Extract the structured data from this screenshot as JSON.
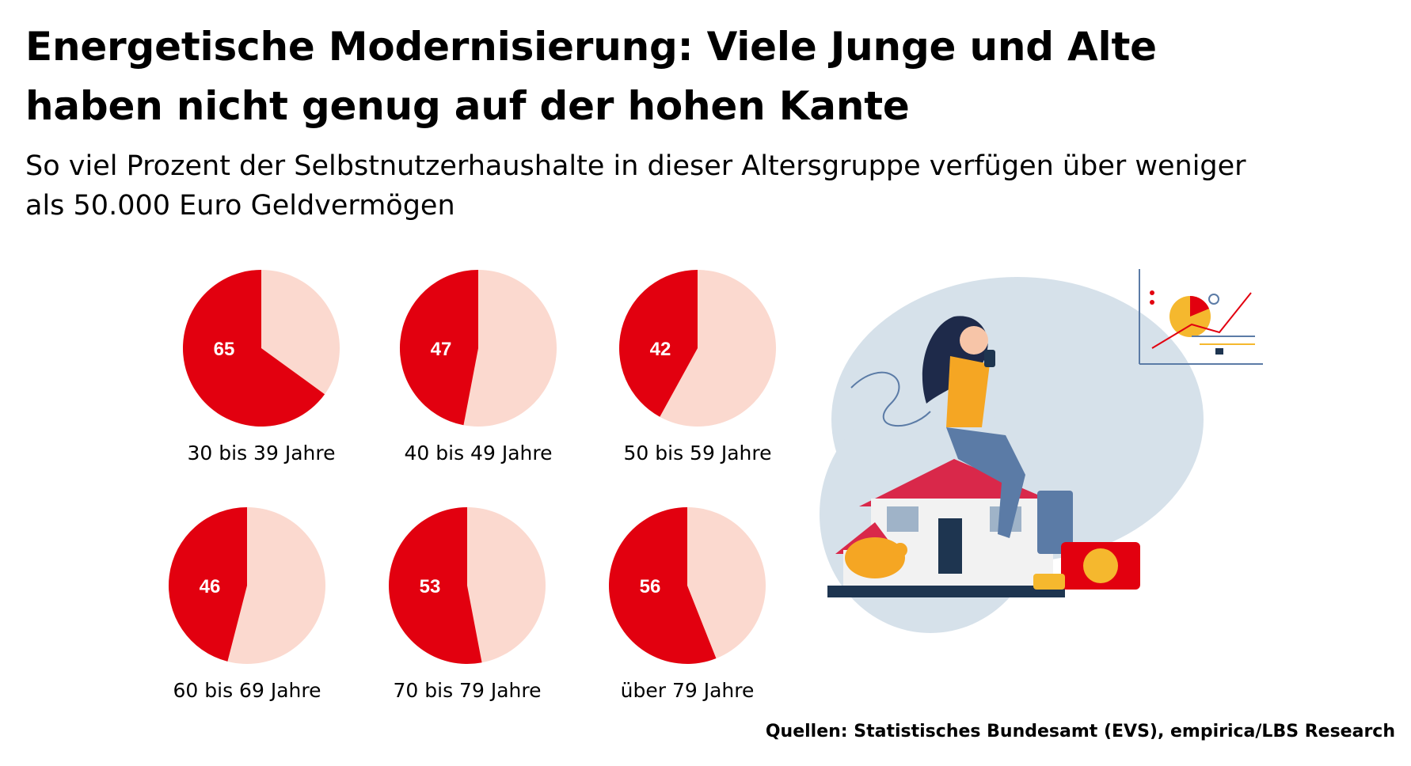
{
  "header": {
    "title_line1": "Energetische Modernisierung: Viele Junge und Alte",
    "title_line2": "haben nicht genug auf der hohen Kante",
    "subtitle_line1": "So viel Prozent der Selbstnutzerhaushalte in dieser Altersgruppe verfügen über weniger",
    "subtitle_line2": "als 50.000 Euro Geldvermögen"
  },
  "footer": {
    "source": "Quellen: Statistisches Bundesamt (EVS), empirica/LBS Research"
  },
  "colors": {
    "primary": "#e2000f",
    "secondary": "#fbd9cf"
  },
  "chart_data": {
    "type": "pie",
    "charts": [
      {
        "label": "30 bis 39 Jahre",
        "value": 65
      },
      {
        "label": "40 bis 49 Jahre",
        "value": 47
      },
      {
        "label": "50 bis 59 Jahre",
        "value": 42
      },
      {
        "label": "60 bis 69 Jahre",
        "value": 46
      },
      {
        "label": "70 bis 79 Jahre",
        "value": 53
      },
      {
        "label": "über 79 Jahre",
        "value": 56
      }
    ]
  }
}
